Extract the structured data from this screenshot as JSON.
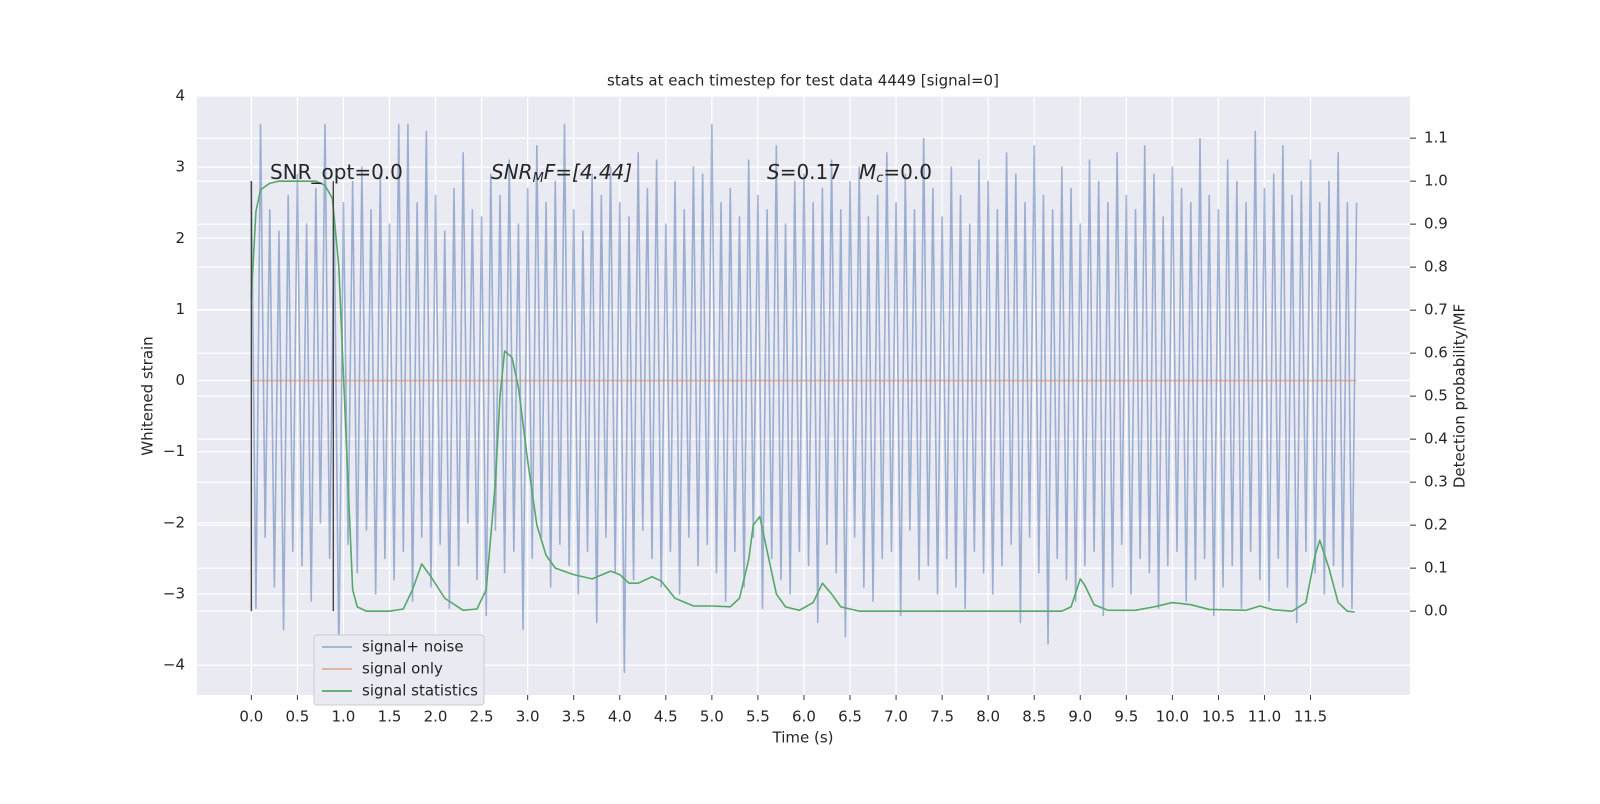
{
  "chart_data": {
    "type": "line",
    "title": "stats at each timestep for test data 4449 [signal=0]",
    "x_label": "Time (s)",
    "y_label": "Whitened strain",
    "y2_label": "Detection probability/MF",
    "xlim": [
      -0.59,
      12.58
    ],
    "ylim": [
      -4.42,
      4.0
    ],
    "y2lim": [
      -0.195,
      1.198
    ],
    "grid": true,
    "legend": "lower left",
    "xticks": [
      {
        "value": 0,
        "label": "0.0"
      },
      {
        "value": 0.5,
        "label": "0.5"
      },
      {
        "value": 1,
        "label": "1.0"
      },
      {
        "value": 1.5,
        "label": "1.5"
      },
      {
        "value": 2,
        "label": "2.0"
      },
      {
        "value": 2.5,
        "label": "2.5"
      },
      {
        "value": 3,
        "label": "3.0"
      },
      {
        "value": 3.5,
        "label": "3.5"
      },
      {
        "value": 4,
        "label": "4.0"
      },
      {
        "value": 4.5,
        "label": "4.5"
      },
      {
        "value": 5,
        "label": "5.0"
      },
      {
        "value": 5.5,
        "label": "5.5"
      },
      {
        "value": 6,
        "label": "6.0"
      },
      {
        "value": 6.5,
        "label": "6.5"
      },
      {
        "value": 7,
        "label": "7.0"
      },
      {
        "value": 7.5,
        "label": "7.5"
      },
      {
        "value": 8,
        "label": "8.0"
      },
      {
        "value": 8.5,
        "label": "8.5"
      },
      {
        "value": 9,
        "label": "9.0"
      },
      {
        "value": 9.5,
        "label": "9.5"
      },
      {
        "value": 10,
        "label": "10.0"
      },
      {
        "value": 10.5,
        "label": "10.5"
      },
      {
        "value": 11,
        "label": "11.0"
      },
      {
        "value": 11.5,
        "label": "11.5"
      }
    ],
    "yticks": [
      4,
      3,
      2,
      1,
      0,
      {
        "value": -1,
        "label": "−1"
      },
      {
        "value": -2,
        "label": "−2"
      },
      {
        "value": -3,
        "label": "−3"
      },
      {
        "value": -4,
        "label": "−4"
      }
    ],
    "y2ticks": [
      {
        "value": 0,
        "label": "0.0"
      },
      {
        "value": 0.1,
        "label": "0.1"
      },
      {
        "value": 0.2,
        "label": "0.2"
      },
      {
        "value": 0.3,
        "label": "0.3"
      },
      {
        "value": 0.4,
        "label": "0.4"
      },
      {
        "value": 0.5,
        "label": "0.5"
      },
      {
        "value": 0.6,
        "label": "0.6"
      },
      {
        "value": 0.7,
        "label": "0.7"
      },
      {
        "value": 0.8,
        "label": "0.8"
      },
      {
        "value": 0.9,
        "label": "0.9"
      },
      {
        "value": 1,
        "label": "1.0"
      },
      {
        "value": 1.1,
        "label": "1.1"
      }
    ],
    "annotations": [
      [
        "SNR_opt=0.0"
      ],
      [
        "SNR",
        "M",
        "F=[4.44]"
      ],
      [
        "S",
        "=0.17"
      ],
      [
        "M",
        "c",
        "=0.0"
      ]
    ],
    "vlines": {
      "x": [
        0,
        0.89
      ],
      "ymin": 0,
      "ymax": 1,
      "color": "#444444",
      "axis": "y2"
    },
    "series": [
      {
        "name": "signal+ noise",
        "color": "#4c72b0",
        "opacity": 0.5,
        "x": [
          0,
          0.05,
          0.1,
          0.15,
          0.2,
          0.25,
          0.3,
          0.35,
          0.4,
          0.45,
          0.5,
          0.55,
          0.6,
          0.65,
          0.7,
          0.75,
          0.8,
          0.85,
          0.9,
          0.95,
          1,
          1.05,
          1.1,
          1.15,
          1.2,
          1.25,
          1.3,
          1.35,
          1.4,
          1.45,
          1.5,
          1.55,
          1.6,
          1.65,
          1.7,
          1.75,
          1.8,
          1.85,
          1.9,
          1.95,
          2,
          2.05,
          2.1,
          2.15,
          2.2,
          2.25,
          2.3,
          2.35,
          2.4,
          2.45,
          2.5,
          2.55,
          2.6,
          2.65,
          2.7,
          2.75,
          2.8,
          2.85,
          2.9,
          2.95,
          3,
          3.05,
          3.1,
          3.15,
          3.2,
          3.25,
          3.3,
          3.35,
          3.4,
          3.45,
          3.5,
          3.55,
          3.6,
          3.65,
          3.7,
          3.75,
          3.8,
          3.85,
          3.9,
          3.95,
          4,
          4.05,
          4.1,
          4.15,
          4.2,
          4.25,
          4.3,
          4.35,
          4.4,
          4.45,
          4.5,
          4.55,
          4.6,
          4.65,
          4.7,
          4.75,
          4.8,
          4.85,
          4.9,
          4.95,
          5,
          5.05,
          5.1,
          5.15,
          5.2,
          5.25,
          5.3,
          5.35,
          5.4,
          5.45,
          5.5,
          5.55,
          5.6,
          5.65,
          5.7,
          5.75,
          5.8,
          5.85,
          5.9,
          5.95,
          6,
          6.05,
          6.1,
          6.15,
          6.2,
          6.25,
          6.3,
          6.35,
          6.4,
          6.45,
          6.5,
          6.55,
          6.6,
          6.65,
          6.7,
          6.75,
          6.8,
          6.85,
          6.9,
          6.95,
          7,
          7.05,
          7.1,
          7.15,
          7.2,
          7.25,
          7.3,
          7.35,
          7.4,
          7.45,
          7.5,
          7.55,
          7.6,
          7.65,
          7.7,
          7.75,
          7.8,
          7.85,
          7.9,
          7.95,
          8,
          8.05,
          8.1,
          8.15,
          8.2,
          8.25,
          8.3,
          8.35,
          8.4,
          8.45,
          8.5,
          8.55,
          8.6,
          8.65,
          8.7,
          8.75,
          8.8,
          8.85,
          8.9,
          8.95,
          9,
          9.05,
          9.1,
          9.15,
          9.2,
          9.25,
          9.3,
          9.35,
          9.4,
          9.45,
          9.5,
          9.55,
          9.6,
          9.65,
          9.7,
          9.75,
          9.8,
          9.85,
          9.9,
          9.95,
          10,
          10.05,
          10.1,
          10.15,
          10.2,
          10.25,
          10.3,
          10.35,
          10.4,
          10.45,
          10.5,
          10.55,
          10.6,
          10.65,
          10.7,
          10.75,
          10.8,
          10.85,
          10.9,
          10.95,
          11,
          11.05,
          11.1,
          11.15,
          11.2,
          11.25,
          11.3,
          11.35,
          11.4,
          11.45,
          11.5,
          11.55,
          11.6,
          11.65,
          11.7,
          11.75,
          11.8,
          11.85,
          11.9,
          11.95,
          12
        ],
        "values": [
          2.8,
          -3.2,
          3.6,
          -2.2,
          2.4,
          -2.9,
          2.1,
          -3.5,
          2.6,
          -2.4,
          2.9,
          -2.6,
          2.2,
          -3.1,
          2.7,
          -2.0,
          3.6,
          -2.5,
          2.3,
          -3.9,
          2.5,
          -2.3,
          2.8,
          -2.7,
          3.0,
          -2.1,
          2.4,
          -3.0,
          2.9,
          -2.5,
          2.2,
          -2.8,
          3.6,
          -2.4,
          3.6,
          -3.1,
          2.5,
          -2.2,
          3.5,
          -2.9,
          2.6,
          -2.3,
          2.1,
          -3.2,
          2.7,
          -2.6,
          3.2,
          -2.0,
          2.4,
          -2.8,
          2.3,
          -3.3,
          2.9,
          -2.1,
          2.6,
          -2.7,
          3.1,
          -2.4,
          2.2,
          -3.5,
          2.7,
          -2.5,
          3.3,
          -2.2,
          2.5,
          -2.9,
          2.8,
          -2.3,
          3.6,
          -2.6,
          2.4,
          -3.0,
          2.1,
          -2.4,
          2.9,
          -3.4,
          2.6,
          -2.2,
          3.0,
          -2.7,
          2.5,
          -4.1,
          2.3,
          -2.8,
          3.2,
          -2.1,
          2.7,
          -2.5,
          3.1,
          -2.9,
          2.2,
          -2.4,
          2.8,
          -3.0,
          2.4,
          -2.2,
          3.0,
          -2.6,
          2.9,
          -2.3,
          3.6,
          -2.7,
          2.5,
          -3.1,
          2.7,
          -2.4,
          2.3,
          -2.9,
          3.1,
          -2.2,
          2.6,
          -3.2,
          2.4,
          -2.5,
          3.3,
          -2.8,
          2.2,
          -3.0,
          2.8,
          -2.4,
          2.9,
          -2.6,
          2.5,
          -3.4,
          2.7,
          -2.3,
          3.1,
          -2.7,
          2.4,
          -3.6,
          2.8,
          -2.2,
          3.0,
          -2.9,
          2.3,
          -3.1,
          2.6,
          -2.5,
          3.2,
          -2.4,
          2.5,
          -3.3,
          2.9,
          -2.1,
          2.4,
          -2.8,
          3.4,
          -2.6,
          2.7,
          -3.0,
          2.3,
          -2.5,
          3.0,
          -2.9,
          2.6,
          -3.2,
          2.2,
          -2.4,
          3.1,
          -2.7,
          2.8,
          -3.0,
          2.4,
          -2.6,
          3.2,
          -2.3,
          2.9,
          -3.4,
          2.5,
          -2.2,
          3.3,
          -2.7,
          2.6,
          -3.7,
          2.4,
          -2.5,
          3.0,
          -2.8,
          2.7,
          -3.1,
          2.2,
          -2.6,
          3.1,
          -2.4,
          2.8,
          -3.3,
          2.5,
          -2.9,
          3.2,
          -2.3,
          2.6,
          -3.0,
          2.4,
          -2.5,
          3.3,
          -2.7,
          2.9,
          -3.2,
          2.3,
          -2.6,
          3.0,
          -2.4,
          2.7,
          -3.1,
          2.5,
          -2.8,
          3.4,
          -2.5,
          2.6,
          -3.3,
          2.4,
          -2.9,
          3.1,
          -2.6,
          2.8,
          -3.2,
          2.5,
          -2.4,
          3.5,
          -2.8,
          2.7,
          -3.1,
          2.9,
          -2.5,
          3.3,
          -2.9,
          2.6,
          -3.4,
          2.8,
          -2.4,
          3.1,
          -2.7,
          2.5,
          -3.0,
          2.8,
          -2.6,
          3.2,
          -2.9,
          2.5,
          -3.2,
          2.5
        ]
      },
      {
        "name": "signal only",
        "color": "#dd8452",
        "opacity": 0.6,
        "x": [
          0,
          12
        ],
        "values": [
          0,
          0
        ]
      },
      {
        "name": "signal statistics",
        "color": "#55a868",
        "opacity": 1,
        "axis": "y2",
        "x": [
          0,
          0.05,
          0.1,
          0.2,
          0.3,
          0.5,
          0.7,
          0.8,
          0.88,
          0.95,
          1.0,
          1.05,
          1.1,
          1.15,
          1.25,
          1.5,
          1.65,
          1.75,
          1.85,
          1.95,
          2.1,
          2.3,
          2.45,
          2.55,
          2.65,
          2.7,
          2.75,
          2.83,
          2.9,
          3.0,
          3.1,
          3.2,
          3.3,
          3.5,
          3.7,
          3.9,
          4.0,
          4.1,
          4.2,
          4.35,
          4.45,
          4.6,
          4.8,
          5.0,
          5.2,
          5.3,
          5.4,
          5.45,
          5.52,
          5.6,
          5.7,
          5.8,
          5.95,
          6.1,
          6.2,
          6.3,
          6.4,
          6.6,
          8.8,
          8.9,
          9.0,
          9.05,
          9.15,
          9.3,
          9.6,
          9.8,
          10.0,
          10.2,
          10.4,
          10.8,
          10.95,
          11.1,
          11.3,
          11.45,
          11.55,
          11.6,
          11.7,
          11.8,
          11.9,
          11.98
        ],
        "values": [
          0.73,
          0.93,
          0.98,
          0.995,
          1.0,
          1.0,
          1.0,
          0.99,
          0.96,
          0.8,
          0.55,
          0.3,
          0.05,
          0.01,
          0.0,
          0.0,
          0.005,
          0.05,
          0.11,
          0.08,
          0.03,
          0.002,
          0.005,
          0.05,
          0.3,
          0.5,
          0.605,
          0.59,
          0.52,
          0.35,
          0.2,
          0.13,
          0.1,
          0.085,
          0.075,
          0.093,
          0.085,
          0.065,
          0.065,
          0.08,
          0.07,
          0.03,
          0.012,
          0.012,
          0.01,
          0.03,
          0.12,
          0.2,
          0.22,
          0.14,
          0.04,
          0.01,
          0.002,
          0.02,
          0.065,
          0.04,
          0.01,
          0.0,
          0.0,
          0.01,
          0.075,
          0.06,
          0.015,
          0.002,
          0.002,
          0.01,
          0.02,
          0.015,
          0.004,
          0.002,
          0.012,
          0.003,
          0.0,
          0.02,
          0.13,
          0.165,
          0.1,
          0.02,
          0.0,
          -0.002
        ]
      }
    ]
  }
}
